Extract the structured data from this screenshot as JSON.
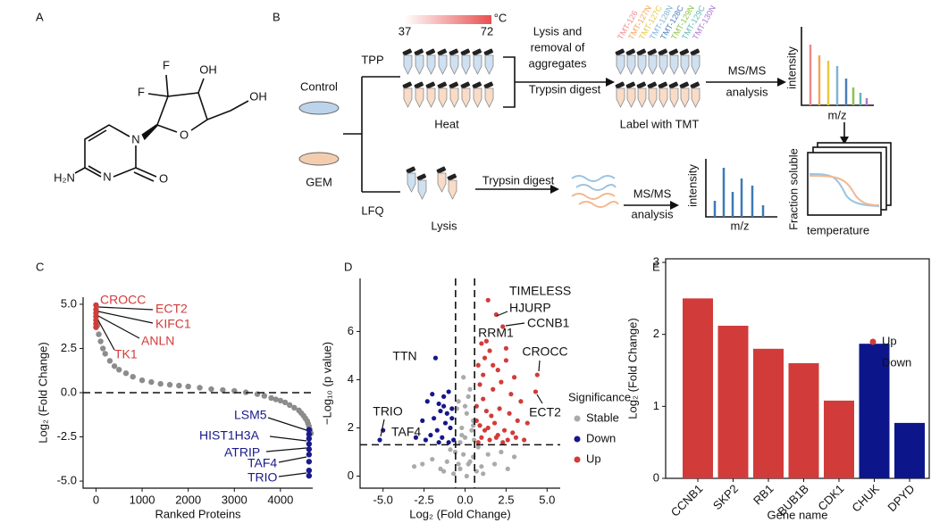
{
  "panel_labels": [
    "A",
    "B",
    "C",
    "D",
    "E"
  ],
  "structure": {
    "atoms": [
      "F",
      "F",
      "OH",
      "OH",
      "O",
      "N",
      "N",
      "O",
      "H₂N"
    ]
  },
  "workflow": {
    "temperature_low": "37",
    "temperature_high": "72",
    "temperature_unit": "°C",
    "tpp": "TPP",
    "control": "Control",
    "gem": "GEM",
    "lfq": "LFQ",
    "heat": "Heat",
    "lysis_removal": [
      "Lysis and",
      "removal of",
      "aggregates"
    ],
    "trypsin_digest_tpp": "Trypsin digest",
    "tmt_labels": [
      {
        "text": "TMT-126",
        "color": "#f08a8a"
      },
      {
        "text": "TMT-127N",
        "color": "#f2a65a"
      },
      {
        "text": "TMT-127C",
        "color": "#e8c840"
      },
      {
        "text": "TMT-128N",
        "color": "#7fb3d5"
      },
      {
        "text": "TMT-128C",
        "color": "#4a7fb8"
      },
      {
        "text": "TMT-129N",
        "color": "#8bc34a"
      },
      {
        "text": "TMT-129C",
        "color": "#5fb8b0"
      },
      {
        "text": "TMT-130N",
        "color": "#a97ad0"
      }
    ],
    "label_with_tmt": "Label with TMT",
    "msms_tpp": [
      "MS/MS",
      "analysis"
    ],
    "intensity_tpp": "intensity",
    "mz_tpp": "m/z",
    "fraction_soluble": "Fraction soluble",
    "temperature": "temperature",
    "lysis_lfq": "Lysis",
    "trypsin_digest_lfq": "Trypsin digest",
    "msms_lfq": [
      "MS/MS",
      "analysis"
    ],
    "intensity_lfq": "intensity",
    "mz_lfq": "m/z"
  },
  "chart_data": [
    {
      "type": "scatter",
      "xlabel": "Ranked Proteins",
      "ylabel": "Log₂ (Fold Change)",
      "xlim": [
        -280,
        4700
      ],
      "ylim": [
        -5.4,
        5.4
      ],
      "xticks": [
        0,
        1000,
        2000,
        3000,
        4000
      ],
      "yticks": [
        {
          "value": 5,
          "label": "5.0"
        },
        {
          "value": 2.5,
          "label": "2.5"
        },
        {
          "value": 0,
          "label": "0.0"
        },
        {
          "value": -2.5,
          "label": "-2.5"
        },
        {
          "value": -5,
          "label": "-5.0"
        }
      ],
      "hlines": [
        0
      ],
      "series": [
        {
          "color": "#8c8c8c",
          "x": [
            30,
            60,
            100,
            150,
            200,
            300,
            400,
            500,
            650,
            800,
            1000,
            1200,
            1400,
            1600,
            1800,
            2000,
            2250,
            2500,
            2750,
            3000,
            3250,
            3500,
            3650,
            3800,
            3900,
            4000,
            4100,
            4200,
            4300,
            4400,
            4450,
            4500,
            4540,
            4580,
            4600,
            4620,
            4640,
            4660
          ],
          "y": [
            3.8,
            3.3,
            2.9,
            2.5,
            2.2,
            1.8,
            1.5,
            1.3,
            1.1,
            0.9,
            0.7,
            0.6,
            0.5,
            0.45,
            0.4,
            0.35,
            0.28,
            0.2,
            0.15,
            0.1,
            0.02,
            -0.08,
            -0.18,
            -0.3,
            -0.38,
            -0.45,
            -0.55,
            -0.7,
            -0.85,
            -1.0,
            -1.15,
            -1.3,
            -1.45,
            -1.6,
            -1.75,
            -1.9,
            -2.1,
            -2.3
          ]
        },
        {
          "color": "#d13c3a",
          "x": [
            0,
            0,
            0,
            0,
            0,
            0,
            0
          ],
          "y": [
            4.95,
            4.7,
            4.5,
            4.3,
            4.1,
            3.9,
            3.7
          ]
        },
        {
          "color": "#1a1a8c",
          "x": [
            4620,
            4620,
            4620,
            4620,
            4620,
            4620,
            4620,
            4620,
            4620
          ],
          "y": [
            -2.1,
            -2.35,
            -2.6,
            -2.9,
            -3.2,
            -3.5,
            -3.9,
            -4.4,
            -4.7
          ]
        }
      ],
      "annotations": [
        "CROCC",
        "ECT2",
        "KIFC1",
        "ANLN",
        "TK1",
        "LSM5",
        "HIST1H3A",
        "ATRIP",
        "TAF4",
        "TRIO"
      ]
    },
    {
      "type": "scatter",
      "xlabel": "Log₂ (Fold Change)",
      "ylabel": "−Log₁₀ (p value)",
      "xlim": [
        -6.4,
        5.8
      ],
      "ylim": [
        -0.5,
        8.2
      ],
      "xticks": [
        {
          "value": -5,
          "label": "-5.0"
        },
        {
          "value": -2.5,
          "label": "-2.5"
        },
        {
          "value": 0,
          "label": "0.0"
        },
        {
          "value": 2.5,
          "label": "2.5"
        },
        {
          "value": 5,
          "label": "5.0"
        }
      ],
      "yticks": [
        0,
        2,
        4,
        6
      ],
      "vlines": [
        -0.58,
        0.58
      ],
      "hlines": [
        1.3
      ],
      "legend_title": "Significance",
      "series": [
        {
          "name": "Stable",
          "color": "#aaaaaa",
          "x": [
            -0.3,
            0.2,
            0.5,
            -0.6,
            -1.1,
            1.0,
            1.4,
            -1.5,
            0.8,
            -0.2,
            0.1,
            -0.9,
            1.8,
            -2.0,
            2.2,
            -0.4,
            0.3,
            0.5,
            -0.1,
            0.0,
            -1.3,
            1.1,
            -2.6,
            2.6,
            -0.5,
            0.4,
            -0.7,
            0.7,
            -0.3,
            0.2,
            0.1,
            -0.1,
            0.3,
            -0.2,
            3.0,
            -3.1,
            0.5,
            -0.4,
            0.0,
            0.55
          ],
          "y": [
            0.3,
            0.5,
            0.8,
            1.0,
            0.6,
            0.4,
            0.9,
            0.3,
            1.2,
            2.0,
            2.6,
            1.1,
            0.5,
            0.7,
            1.0,
            3.1,
            3.6,
            2.3,
            4.1,
            1.6,
            0.2,
            0.1,
            0.5,
            0.3,
            2.8,
            1.9,
            0.1,
            0.2,
            1.4,
            3.3,
            0.0,
            0.9,
            0.6,
            1.7,
            0.8,
            0.4,
            2.1,
            0.5,
            2.9,
            1.5
          ]
        },
        {
          "name": "Down",
          "color": "#16168a",
          "x": [
            -1.8,
            -5.2,
            -5.0,
            -1.0,
            -1.3,
            -1.6,
            -2.0,
            -2.3,
            -0.8,
            -1.1,
            -1.5,
            -1.9,
            -2.6,
            -0.9,
            -1.2,
            -1.7,
            -2.1,
            -0.7,
            -1.4,
            -2.4,
            -1.0,
            -1.6,
            -3.0,
            -0.8,
            -1.3
          ],
          "y": [
            4.9,
            1.5,
            1.9,
            3.5,
            3.3,
            3.0,
            3.4,
            3.1,
            2.8,
            2.6,
            2.7,
            2.4,
            2.3,
            2.0,
            2.2,
            1.9,
            1.7,
            1.5,
            1.6,
            1.5,
            1.4,
            1.4,
            1.6,
            2.4,
            2.9
          ]
        },
        {
          "name": "Up",
          "color": "#d13c3a",
          "x": [
            1.4,
            1.9,
            2.3,
            1.0,
            4.4,
            4.3,
            0.8,
            1.2,
            1.5,
            2.0,
            2.5,
            3.0,
            0.9,
            1.1,
            1.7,
            2.2,
            2.8,
            3.4,
            0.7,
            1.3,
            1.6,
            2.1,
            2.7,
            3.2,
            3.8,
            0.9,
            1.4,
            1.8,
            2.4,
            2.9,
            1.0,
            1.5,
            2.0,
            2.6,
            0.8,
            1.2,
            1.9,
            2.3,
            3.1,
            3.6,
            1.1,
            1.7,
            0.7,
            2.5,
            1.3
          ],
          "y": [
            7.3,
            6.7,
            6.2,
            5.5,
            4.2,
            3.5,
            4.6,
            4.9,
            5.2,
            4.4,
            4.8,
            4.1,
            3.8,
            3.2,
            3.6,
            3.9,
            3.4,
            3.1,
            2.9,
            2.7,
            2.5,
            2.8,
            2.6,
            2.3,
            2.2,
            2.1,
            2.0,
            2.2,
            1.9,
            1.8,
            1.6,
            1.5,
            1.7,
            1.5,
            1.4,
            1.9,
            1.6,
            1.4,
            1.6,
            1.5,
            4.2,
            4.6,
            2.3,
            5.3,
            5.6
          ]
        }
      ],
      "annotations": [
        "TIMELESS",
        "HJURP",
        "CCNB1",
        "RRM1",
        "CROCC",
        "ECT2",
        "TTN",
        "TRIO",
        "TAF4"
      ]
    },
    {
      "type": "bar",
      "xlabel": "Gene name",
      "ylabel": "Log₂ (Fold Change)",
      "categories": [
        "CCNB1",
        "SKP2",
        "RB1",
        "BUB1B",
        "CDK1",
        "CHUK",
        "DPYD"
      ],
      "values": [
        2.5,
        2.12,
        1.8,
        1.6,
        1.08,
        1.87,
        0.77
      ],
      "colors": [
        "#d13c3a",
        "#d13c3a",
        "#d13c3a",
        "#d13c3a",
        "#d13c3a",
        "#0c168a",
        "#0c168a"
      ],
      "ylim": [
        0,
        3.05
      ],
      "yticks": [
        0,
        1,
        2,
        3
      ],
      "legend": [
        {
          "name": "Up",
          "color": "#d13c3a"
        },
        {
          "name": "Down",
          "color": "#0c168a"
        }
      ]
    }
  ]
}
